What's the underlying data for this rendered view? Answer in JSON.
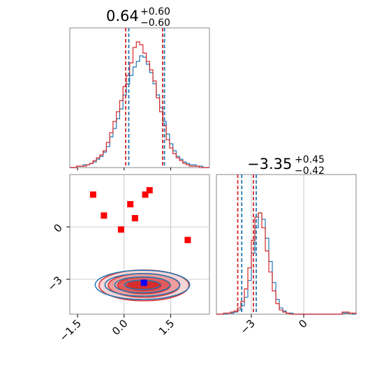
{
  "chart_data": {
    "type": "corner",
    "parameters": [
      {
        "title": {
          "median": "0.64",
          "plus": "+0.60",
          "minus": "−0.60"
        },
        "range": [
          -1.75,
          2.75
        ],
        "ticks": [
          -1.5,
          0.0,
          1.5
        ],
        "tick_labels": [
          "−1.5",
          "0.0",
          "1.5"
        ],
        "quantiles": {
          "red": [
            0.05,
            1.24
          ],
          "blue": [
            0.15,
            1.3
          ]
        }
      },
      {
        "title": {
          "median": "−3.35",
          "plus": "+0.45",
          "minus": "−0.42"
        },
        "range": [
          -5.0,
          3.0
        ],
        "ticks": [
          -3,
          0
        ],
        "tick_labels": [
          "−3",
          "0"
        ],
        "quantiles": {
          "red": [
            -3.78,
            -2.88
          ],
          "blue": [
            -3.55,
            -2.72
          ]
        }
      }
    ],
    "grid_lines": {
      "x": [
        0.0,
        1.5
      ],
      "y": [
        0,
        -3
      ]
    },
    "series": [
      {
        "name": "",
        "color": "#1f77b4"
      },
      {
        "name": "",
        "color": "#d62728"
      }
    ],
    "hist_x_counts": {
      "blue": [
        0,
        0,
        1,
        1,
        2,
        2,
        3,
        4,
        6,
        8,
        11,
        15,
        22,
        28,
        35,
        42,
        52,
        60,
        66,
        72,
        76,
        80,
        79,
        74,
        68,
        60,
        52,
        43,
        33,
        24,
        17,
        12,
        8,
        6,
        4,
        3,
        2,
        2,
        1,
        1,
        0,
        0
      ],
      "red": [
        0,
        0,
        1,
        1,
        1,
        2,
        3,
        5,
        7,
        9,
        12,
        18,
        25,
        33,
        40,
        48,
        58,
        66,
        75,
        86,
        90,
        88,
        82,
        76,
        70,
        62,
        50,
        40,
        30,
        20,
        14,
        10,
        7,
        5,
        3,
        2,
        1,
        1,
        1,
        0,
        0,
        0
      ]
    },
    "hist_y_counts": {
      "blue": [
        0,
        0,
        0,
        1,
        1,
        2,
        4,
        8,
        16,
        32,
        58,
        82,
        96,
        90,
        72,
        50,
        30,
        14,
        6,
        3,
        1,
        1,
        0,
        0,
        0,
        0,
        0,
        0,
        0,
        0,
        0,
        0,
        0,
        0,
        0,
        0,
        1,
        1,
        1,
        0
      ],
      "red": [
        0,
        0,
        1,
        1,
        2,
        3,
        6,
        12,
        24,
        44,
        70,
        92,
        96,
        82,
        60,
        40,
        22,
        10,
        4,
        2,
        1,
        0,
        0,
        0,
        0,
        0,
        0,
        0,
        0,
        0,
        0,
        0,
        0,
        0,
        0,
        0,
        2,
        2,
        1,
        1
      ]
    },
    "contour_center": [
      0.64,
      -3.35
    ],
    "contour_levels_sigma": [
      [
        0.55,
        0.28
      ],
      [
        0.85,
        0.48
      ],
      [
        1.15,
        0.68
      ],
      [
        1.45,
        0.88
      ]
    ],
    "outlier_points": [
      {
        "x": -1.0,
        "y": 1.85
      },
      {
        "x": -0.65,
        "y": 0.65
      },
      {
        "x": 0.2,
        "y": 1.3
      },
      {
        "x": 0.35,
        "y": 0.5
      },
      {
        "x": -0.1,
        "y": -0.15
      },
      {
        "x": 0.68,
        "y": 1.85
      },
      {
        "x": 0.82,
        "y": 2.1
      },
      {
        "x": 2.05,
        "y": -0.75
      }
    ],
    "truth_point": {
      "x": 0.64,
      "y": -3.2
    }
  }
}
